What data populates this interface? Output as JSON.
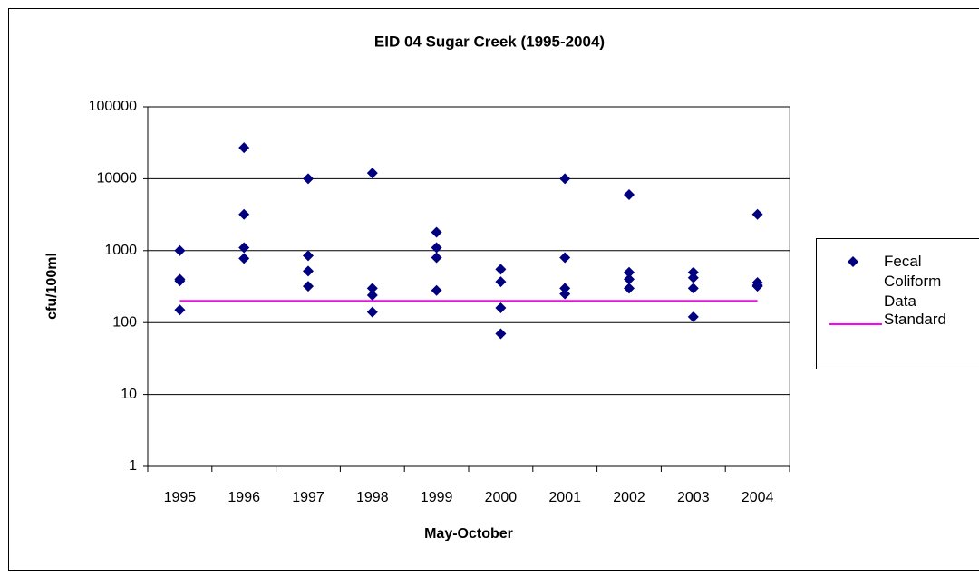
{
  "chart_data": {
    "type": "scatter",
    "title": "EID 04 Sugar Creek (1995-2004)",
    "x_label": "May-October",
    "y_label": "cfu/100ml",
    "log_y": true,
    "ylim": [
      1,
      100000
    ],
    "yticks": [
      1,
      10,
      100,
      1000,
      10000,
      100000
    ],
    "xlim": [
      1994.5,
      2004.5
    ],
    "xticks": [
      1995,
      1996,
      1997,
      1998,
      1999,
      2000,
      2001,
      2002,
      2003,
      2004
    ],
    "grid": true,
    "legend": "right",
    "series": [
      {
        "name": "Fecal Coliform Data",
        "type": "scatter",
        "color": "#000080",
        "x": [
          1995,
          1995,
          1995,
          1995,
          1996,
          1996,
          1996,
          1996,
          1997,
          1997,
          1997,
          1997,
          1998,
          1998,
          1998,
          1998,
          1999,
          1999,
          1999,
          1999,
          2000,
          2000,
          2000,
          2000,
          2001,
          2001,
          2001,
          2001,
          2002,
          2002,
          2002,
          2002,
          2003,
          2003,
          2003,
          2003,
          2004,
          2004,
          2004,
          2004
        ],
        "values": [
          1000,
          400,
          380,
          150,
          27000,
          3200,
          1100,
          780,
          10000,
          850,
          520,
          320,
          12000,
          300,
          240,
          140,
          1800,
          1100,
          800,
          280,
          550,
          370,
          160,
          70,
          10000,
          800,
          300,
          250,
          6000,
          500,
          400,
          300,
          500,
          420,
          300,
          120,
          3200,
          360,
          330,
          320
        ]
      },
      {
        "name": "Standard",
        "type": "line",
        "color": "#ff00ff",
        "x": [
          1995,
          2004
        ],
        "values": [
          200,
          200
        ]
      }
    ]
  }
}
